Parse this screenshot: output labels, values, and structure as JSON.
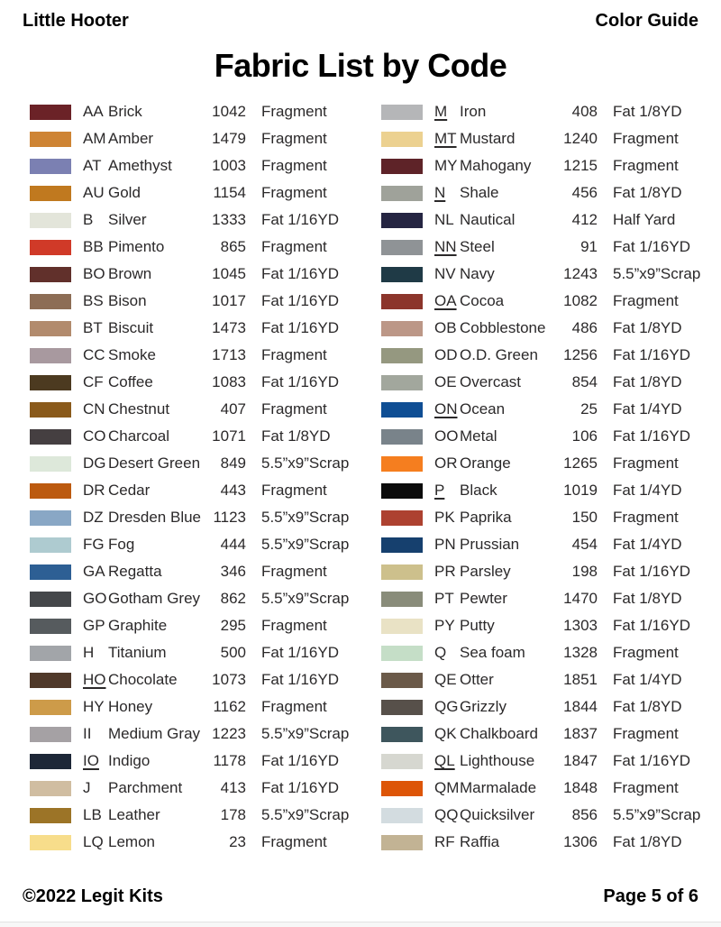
{
  "header": {
    "left": "Little Hooter",
    "right": "Color Guide"
  },
  "title": "Fabric List by Code",
  "columns": {
    "left": [
      {
        "code": "AA",
        "underline": false,
        "name": "Brick",
        "number": "1042",
        "qty": "Fragment",
        "swatch": "#6b2227"
      },
      {
        "code": "AM",
        "underline": false,
        "name": "Amber",
        "number": "1479",
        "qty": "Fragment",
        "swatch": "#ce8434"
      },
      {
        "code": "AT",
        "underline": false,
        "name": "Amethyst",
        "number": "1003",
        "qty": "Fragment",
        "swatch": "#7b80b2"
      },
      {
        "code": "AU",
        "underline": false,
        "name": "Gold",
        "number": "1154",
        "qty": "Fragment",
        "swatch": "#c0791f"
      },
      {
        "code": "B",
        "underline": false,
        "name": "Silver",
        "number": "1333",
        "qty": "Fat 1/16YD",
        "swatch": "#e3e5da"
      },
      {
        "code": "BB",
        "underline": false,
        "name": "Pimento",
        "number": "865",
        "qty": "Fragment",
        "swatch": "#d03a28"
      },
      {
        "code": "BO",
        "underline": false,
        "name": "Brown",
        "number": "1045",
        "qty": "Fat 1/16YD",
        "swatch": "#61302b"
      },
      {
        "code": "BS",
        "underline": false,
        "name": "Bison",
        "number": "1017",
        "qty": "Fat 1/16YD",
        "swatch": "#8d6d55"
      },
      {
        "code": "BT",
        "underline": false,
        "name": "Biscuit",
        "number": "1473",
        "qty": "Fat 1/16YD",
        "swatch": "#b28b6d"
      },
      {
        "code": "CC",
        "underline": false,
        "name": "Smoke",
        "number": "1713",
        "qty": "Fragment",
        "swatch": "#a8999f"
      },
      {
        "code": "CF",
        "underline": false,
        "name": "Coffee",
        "number": "1083",
        "qty": "Fat 1/16YD",
        "swatch": "#4c3a20"
      },
      {
        "code": "CN",
        "underline": false,
        "name": "Chestnut",
        "number": "407",
        "qty": "Fragment",
        "swatch": "#8a5a1b"
      },
      {
        "code": "CO",
        "underline": false,
        "name": "Charcoal",
        "number": "1071",
        "qty": "Fat 1/8YD",
        "swatch": "#453f41"
      },
      {
        "code": "DG",
        "underline": false,
        "name": "Desert Green",
        "number": "849",
        "qty": "5.5”x9”Scrap",
        "swatch": "#dde8da"
      },
      {
        "code": "DR",
        "underline": false,
        "name": "Cedar",
        "number": "443",
        "qty": "Fragment",
        "swatch": "#bc5a0f"
      },
      {
        "code": "DZ",
        "underline": false,
        "name": "Dresden Blue",
        "number": "1123",
        "qty": "5.5”x9”Scrap",
        "swatch": "#89a7c5"
      },
      {
        "code": "FG",
        "underline": false,
        "name": "Fog",
        "number": "444",
        "qty": "5.5”x9”Scrap",
        "swatch": "#aecbd0"
      },
      {
        "code": "GA",
        "underline": false,
        "name": "Regatta",
        "number": "346",
        "qty": "Fragment",
        "swatch": "#2d5f94"
      },
      {
        "code": "GO",
        "underline": false,
        "name": "Gotham Grey",
        "number": "862",
        "qty": "5.5”x9”Scrap",
        "swatch": "#45474a"
      },
      {
        "code": "GP",
        "underline": false,
        "name": "Graphite",
        "number": "295",
        "qty": "Fragment",
        "swatch": "#565b5e"
      },
      {
        "code": "H",
        "underline": false,
        "name": "Titanium",
        "number": "500",
        "qty": "Fat 1/16YD",
        "swatch": "#a2a5a9"
      },
      {
        "code": "HO",
        "underline": true,
        "name": "Chocolate",
        "number": "1073",
        "qty": "Fat 1/16YD",
        "swatch": "#50392a"
      },
      {
        "code": "HY",
        "underline": false,
        "name": "Honey",
        "number": "1162",
        "qty": "Fragment",
        "swatch": "#cd9b49"
      },
      {
        "code": "II",
        "underline": false,
        "name": "Medium Gray",
        "number": "1223",
        "qty": "5.5”x9”Scrap",
        "swatch": "#a5a1a4"
      },
      {
        "code": "IO",
        "underline": true,
        "name": "Indigo",
        "number": "1178",
        "qty": "Fat 1/16YD",
        "swatch": "#1d2737"
      },
      {
        "code": "J",
        "underline": false,
        "name": "Parchment",
        "number": "413",
        "qty": "Fat 1/16YD",
        "swatch": "#d0bda1"
      },
      {
        "code": "LB",
        "underline": false,
        "name": "Leather",
        "number": "178",
        "qty": "5.5”x9”Scrap",
        "swatch": "#9c7427"
      },
      {
        "code": "LQ",
        "underline": false,
        "name": "Lemon",
        "number": "23",
        "qty": "Fragment",
        "swatch": "#f7dd8b"
      }
    ],
    "right": [
      {
        "code": "M",
        "underline": true,
        "name": "Iron",
        "number": "408",
        "qty": "Fat 1/8YD",
        "swatch": "#b5b6b8"
      },
      {
        "code": "MT",
        "underline": true,
        "name": "Mustard",
        "number": "1240",
        "qty": "Fragment",
        "swatch": "#ecd190"
      },
      {
        "code": "MY",
        "underline": false,
        "name": "Mahogany",
        "number": "1215",
        "qty": "Fragment",
        "swatch": "#5e2328"
      },
      {
        "code": "N",
        "underline": true,
        "name": "Shale",
        "number": "456",
        "qty": "Fat 1/8YD",
        "swatch": "#9fa29a"
      },
      {
        "code": "NL",
        "underline": false,
        "name": "Nautical",
        "number": "412",
        "qty": "Half Yard",
        "swatch": "#252542"
      },
      {
        "code": "NN",
        "underline": true,
        "name": "Steel",
        "number": "91",
        "qty": "Fat 1/16YD",
        "swatch": "#8f9396"
      },
      {
        "code": "NV",
        "underline": false,
        "name": "Navy",
        "number": "1243",
        "qty": "5.5”x9”Scrap",
        "swatch": "#1f3a46"
      },
      {
        "code": "OA",
        "underline": true,
        "name": "Cocoa",
        "number": "1082",
        "qty": "Fragment",
        "swatch": "#8c352b"
      },
      {
        "code": "OB",
        "underline": false,
        "name": "Cobblestone",
        "number": "486",
        "qty": "Fat 1/8YD",
        "swatch": "#bc9787"
      },
      {
        "code": "OD",
        "underline": false,
        "name": "O.D. Green",
        "number": "1256",
        "qty": "Fat 1/16YD",
        "swatch": "#959880"
      },
      {
        "code": "OE",
        "underline": false,
        "name": "Overcast",
        "number": "854",
        "qty": "Fat 1/8YD",
        "swatch": "#a2a79d"
      },
      {
        "code": "ON",
        "underline": true,
        "name": "Ocean",
        "number": "25",
        "qty": "Fat 1/4YD",
        "swatch": "#0f4e94"
      },
      {
        "code": "OO",
        "underline": false,
        "name": "Metal",
        "number": "106",
        "qty": "Fat 1/16YD",
        "swatch": "#79838a"
      },
      {
        "code": "OR",
        "underline": false,
        "name": "Orange",
        "number": "1265",
        "qty": "Fragment",
        "swatch": "#f57e1f"
      },
      {
        "code": "P",
        "underline": true,
        "name": "Black",
        "number": "1019",
        "qty": "Fat 1/4YD",
        "swatch": "#0b0b0b"
      },
      {
        "code": "PK",
        "underline": false,
        "name": "Paprika",
        "number": "150",
        "qty": "Fragment",
        "swatch": "#ad4130"
      },
      {
        "code": "PN",
        "underline": false,
        "name": "Prussian",
        "number": "454",
        "qty": "Fat 1/4YD",
        "swatch": "#16406e"
      },
      {
        "code": "PR",
        "underline": false,
        "name": "Parsley",
        "number": "198",
        "qty": "Fat 1/16YD",
        "swatch": "#cdc08c"
      },
      {
        "code": "PT",
        "underline": false,
        "name": "Pewter",
        "number": "1470",
        "qty": "Fat 1/8YD",
        "swatch": "#898c7a"
      },
      {
        "code": "PY",
        "underline": false,
        "name": "Putty",
        "number": "1303",
        "qty": "Fat 1/16YD",
        "swatch": "#e9e2c5"
      },
      {
        "code": "Q",
        "underline": false,
        "name": "Sea foam",
        "number": "1328",
        "qty": "Fragment",
        "swatch": "#c5dec7"
      },
      {
        "code": "QE",
        "underline": false,
        "name": "Otter",
        "number": "1851",
        "qty": "Fat 1/4YD",
        "swatch": "#6b5a49"
      },
      {
        "code": "QG",
        "underline": false,
        "name": "Grizzly",
        "number": "1844",
        "qty": "Fat 1/8YD",
        "swatch": "#57504a"
      },
      {
        "code": "QK",
        "underline": false,
        "name": "Chalkboard",
        "number": "1837",
        "qty": "Fragment",
        "swatch": "#3e565d"
      },
      {
        "code": "QL",
        "underline": true,
        "name": "Lighthouse",
        "number": "1847",
        "qty": "Fat 1/16YD",
        "swatch": "#d6d7d0"
      },
      {
        "code": "QM",
        "underline": false,
        "name": "Marmalade",
        "number": "1848",
        "qty": "Fragment",
        "swatch": "#dd5507"
      },
      {
        "code": "QQ",
        "underline": false,
        "name": "Quicksilver",
        "number": "856",
        "qty": "5.5”x9”Scrap",
        "swatch": "#d3dce0"
      },
      {
        "code": "RF",
        "underline": false,
        "name": "Raffia",
        "number": "1306",
        "qty": "Fat 1/8YD",
        "swatch": "#c2b394"
      }
    ]
  },
  "footer": {
    "left": "©2022 Legit Kits",
    "right": "Page 5 of 6"
  }
}
